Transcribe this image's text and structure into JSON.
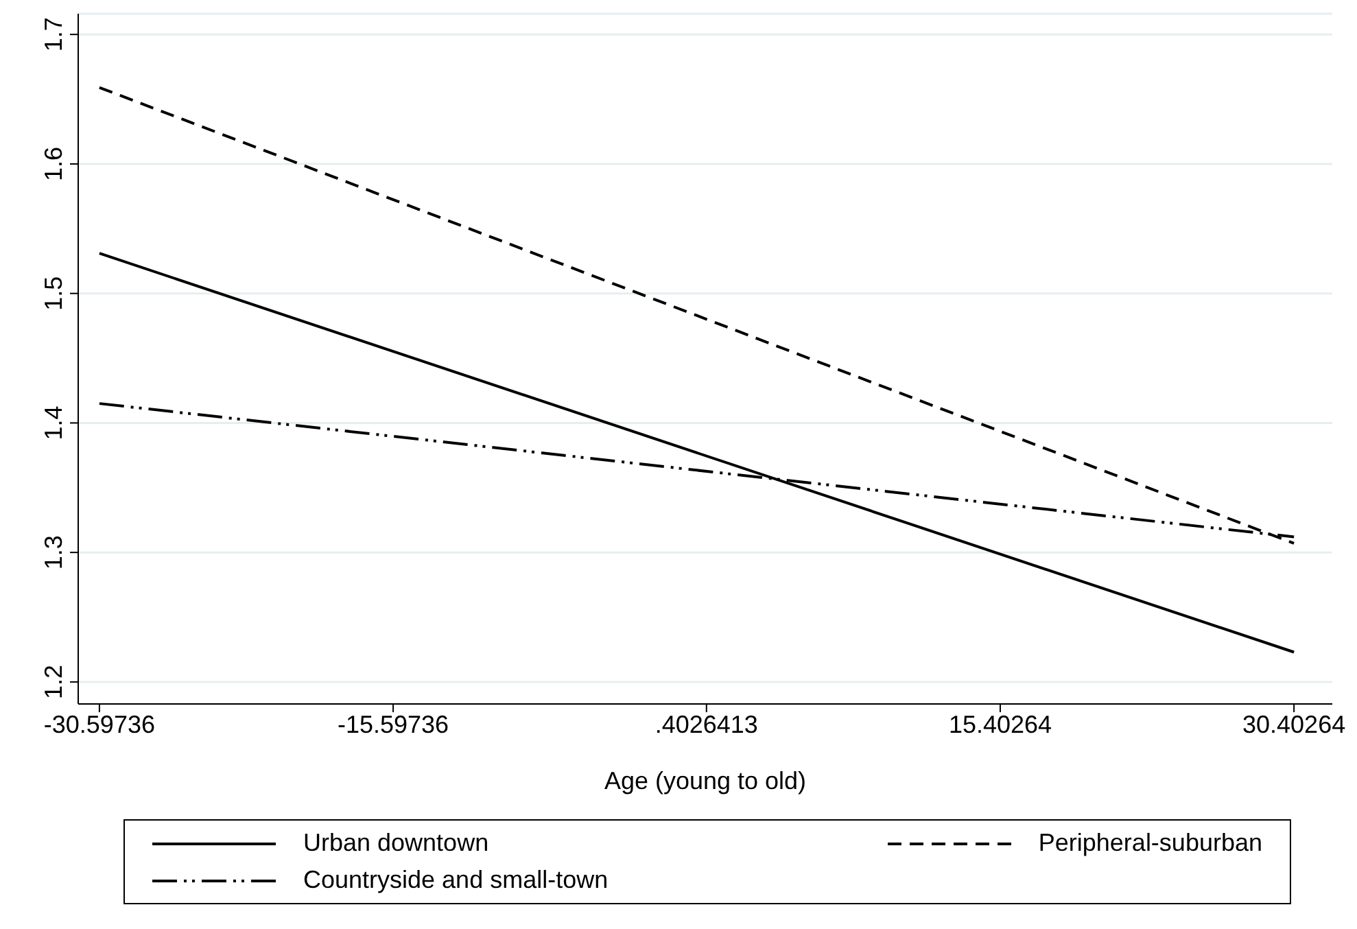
{
  "chart_data": {
    "type": "line",
    "xlabel": "Age (young to old)",
    "x": [
      -30.59736,
      30.40264
    ],
    "series": [
      {
        "name": "Urban downtown",
        "color": "#000000",
        "line_style": "solid",
        "values": [
          1.531,
          1.223
        ]
      },
      {
        "name": "Peripheral-suburban",
        "color": "#000000",
        "line_style": "dashed",
        "values": [
          1.659,
          1.307
        ]
      },
      {
        "name": "Countryside and small-town",
        "color": "#000000",
        "line_style": "dashdot",
        "values": [
          1.415,
          1.312
        ]
      }
    ],
    "xlim": [
      -31.68,
      32.36
    ],
    "xticks": [
      -30.59736,
      -15.59736,
      {
        "value": 0.4026413,
        "label": ".4026413"
      },
      15.40264,
      30.40264
    ],
    "ylim": [
      1.183,
      1.716
    ],
    "yticks": [
      1.2,
      1.3,
      1.4,
      1.5,
      1.6,
      1.7
    ],
    "grid": "y",
    "legend": "bottom",
    "marker": "none"
  }
}
